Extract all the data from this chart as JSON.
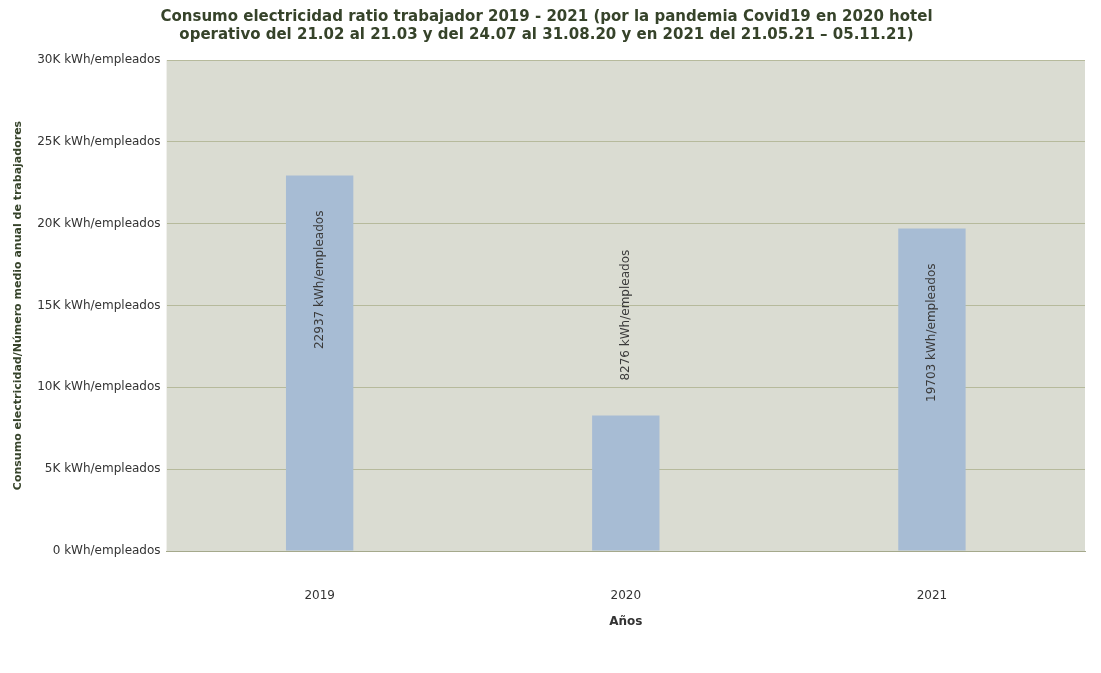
{
  "chart_data": {
    "type": "bar",
    "title": "Consumo electricidad ratio trabajador 2019 - 2021 (por la pandemia Covid19 en 2020 hotel operativo del 21.02 al 21.03 y del 24.07 al 31.08.20 y en 2021 del 21.05.21 – 05.11.21)",
    "xlabel": "Años",
    "ylabel": "Consumo electricidad/Número medio anual de trabajadores",
    "categories": [
      "2019",
      "2020",
      "2021"
    ],
    "values": [
      22937,
      8276,
      19703
    ],
    "color": "#a7bcd4",
    "value_labels": [
      "22937 kWh/empleados",
      "8276 kWh/empleados",
      "19703 kWh/empleados"
    ],
    "ylim": [
      0,
      30000
    ],
    "yticks": [
      {
        "value": 0,
        "label": "0 kWh/empleados"
      },
      {
        "value": 5000,
        "label": "5K kWh/empleados"
      },
      {
        "value": 10000,
        "label": "10K kWh/empleados"
      },
      {
        "value": 15000,
        "label": "15K kWh/empleados"
      },
      {
        "value": 20000,
        "label": "20K kWh/empleados"
      },
      {
        "value": 25000,
        "label": "25K kWh/empleados"
      },
      {
        "value": 30000,
        "label": "30K kWh/empleados"
      }
    ],
    "grid": "y"
  }
}
